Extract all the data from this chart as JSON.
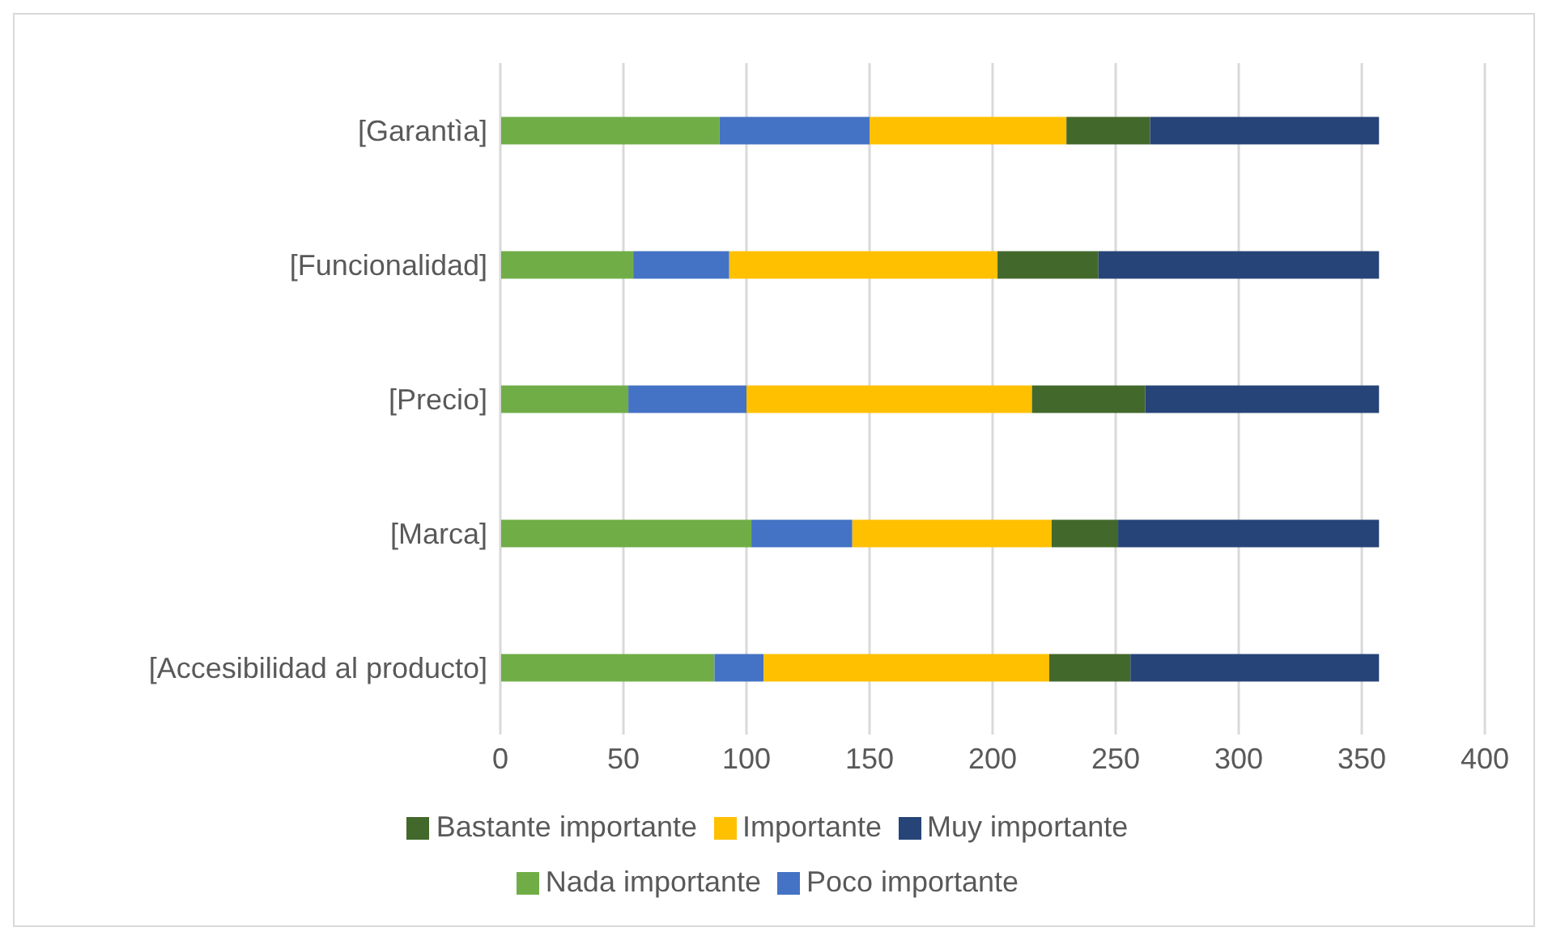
{
  "chart_data": {
    "type": "bar",
    "orientation": "horizontal",
    "stacked": true,
    "categories": [
      "[Garantìa]",
      "[Funcionalidad]",
      "[Precio]",
      "[Marca]",
      "[Accesibilidad al producto]"
    ],
    "series": [
      {
        "name": "Nada importante",
        "color": "#70ad47",
        "values": [
          89,
          54,
          52,
          102,
          87
        ]
      },
      {
        "name": "Poco importante",
        "color": "#4472c4",
        "values": [
          61,
          39,
          48,
          41,
          20
        ]
      },
      {
        "name": "Importante",
        "color": "#ffc000",
        "values": [
          80,
          109,
          116,
          81,
          116
        ]
      },
      {
        "name": "Bastante importante",
        "color": "#43682b",
        "values": [
          34,
          41,
          46,
          27,
          33
        ]
      },
      {
        "name": "Muy importante",
        "color": "#264478",
        "values": [
          93,
          114,
          95,
          106,
          101
        ]
      }
    ],
    "xlim": [
      0,
      400
    ],
    "xticks": [
      0,
      50,
      100,
      150,
      200,
      250,
      300,
      350,
      400
    ],
    "grid": "x",
    "legend": "bottom"
  }
}
